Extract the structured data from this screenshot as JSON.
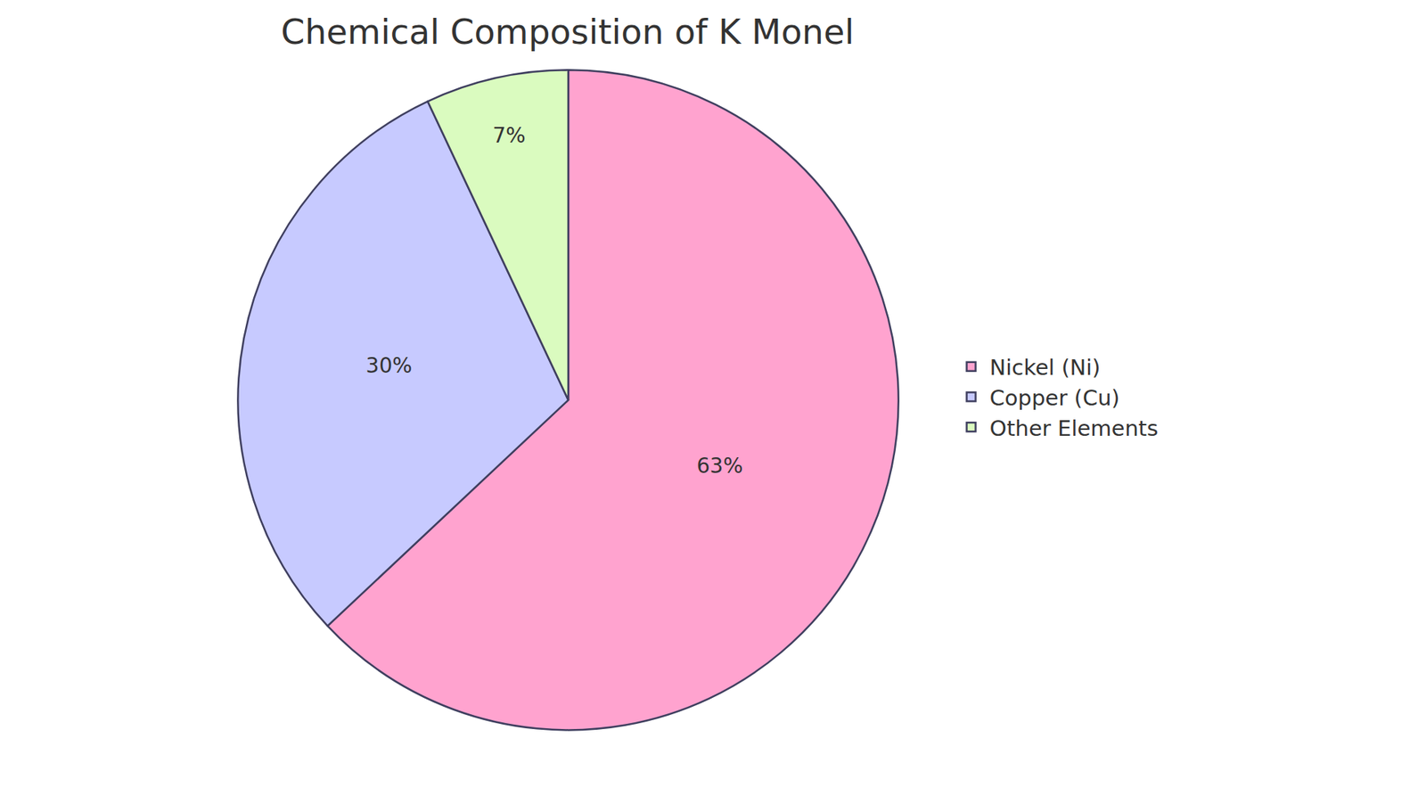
{
  "chart_data": {
    "type": "pie",
    "title": "Chemical Composition of K Monel",
    "categories": [
      "Nickel (Ni)",
      "Copper (Cu)",
      "Other Elements"
    ],
    "values": [
      63,
      30,
      7
    ],
    "value_labels": [
      "63%",
      "30%",
      "7%"
    ],
    "colors": [
      "#FFA3CF",
      "#C7CAFF",
      "#DAFBBF"
    ],
    "data_labels": true,
    "legend": "right"
  }
}
